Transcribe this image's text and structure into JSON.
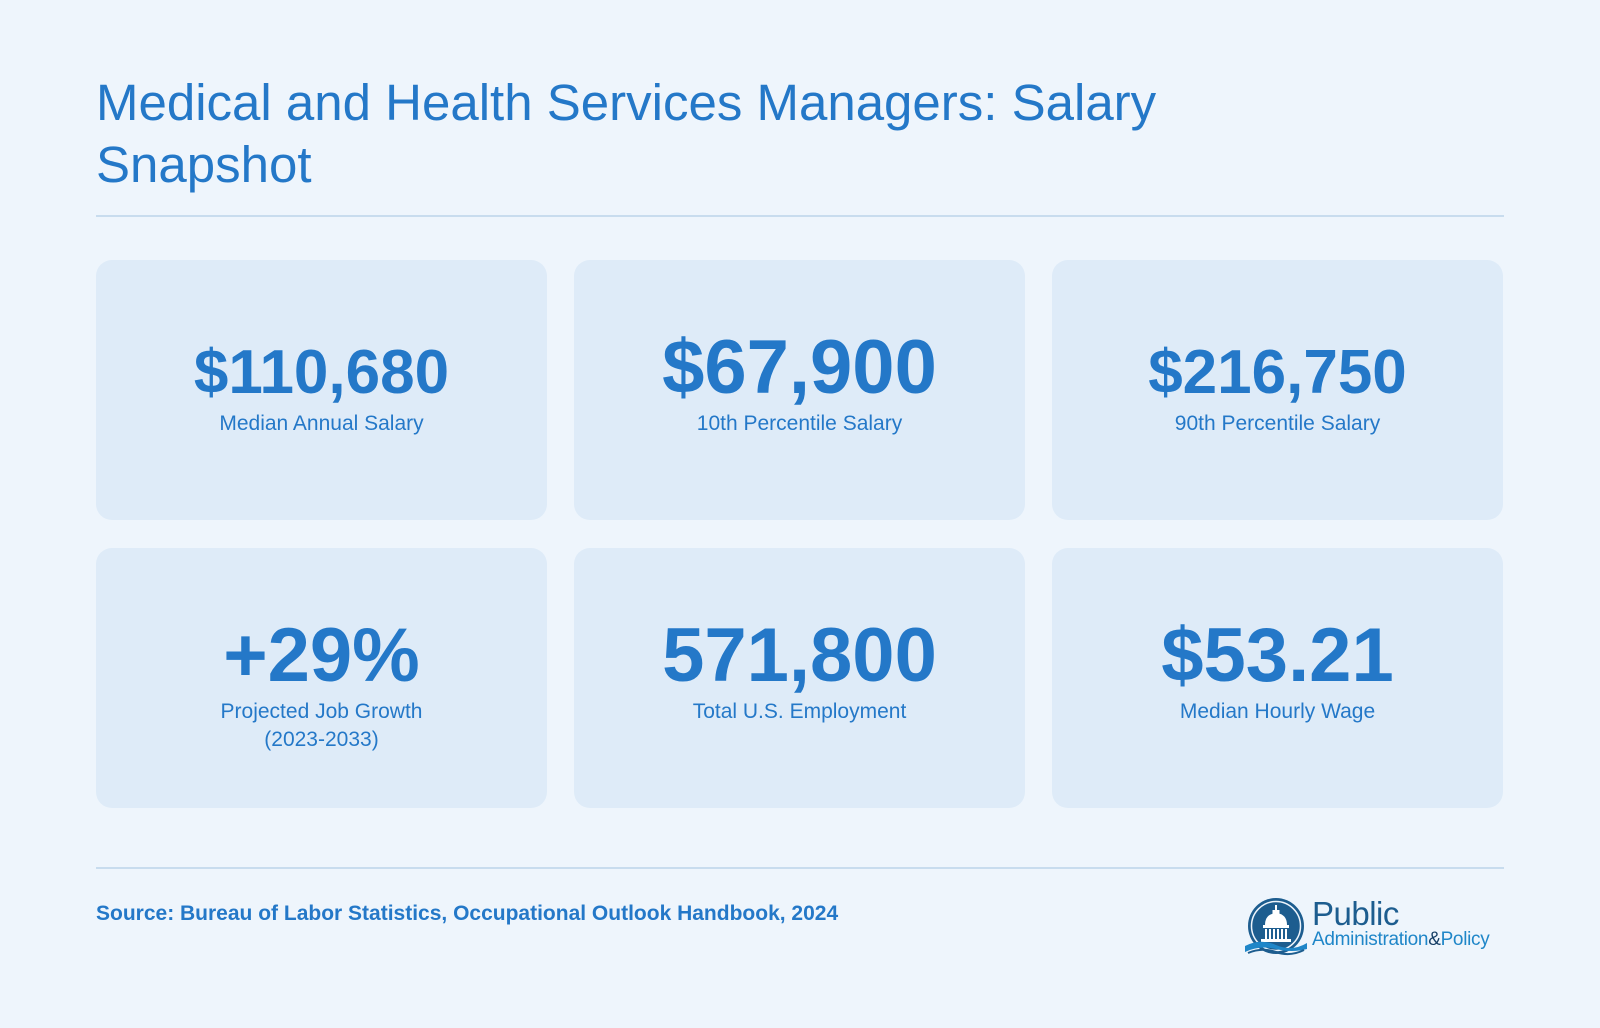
{
  "header": {
    "title": "Medical and Health Services Managers: Salary Snapshot"
  },
  "stats": [
    {
      "value": "$110,680",
      "label_lines": [
        "Median Annual Salary"
      ]
    },
    {
      "value": "$67,900",
      "label_lines": [
        "10th Percentile Salary"
      ]
    },
    {
      "value": "$216,750",
      "label_lines": [
        "90th Percentile Salary"
      ]
    },
    {
      "value": "+29%",
      "label_lines": [
        "Projected Job Growth",
        "(2023-2033)"
      ]
    },
    {
      "value": "571,800",
      "label_lines": [
        "Total U.S. Employment"
      ]
    },
    {
      "value": "$53.21",
      "label_lines": [
        "Median Hourly Wage"
      ]
    }
  ],
  "footer": {
    "source": "Source: Bureau of Labor Statistics, Occupational Outlook Handbook, 2024",
    "logo": {
      "word_public": "Public",
      "word_admin": "Administration",
      "word_amp": "&",
      "word_policy": "Policy",
      "icon": "capitol-dome-icon"
    }
  },
  "colors": {
    "background": "#eef5fc",
    "card": "#deebf8",
    "accent": "#2478c8",
    "divider": "#c8dcee",
    "logo_dark": "#1d5d8f",
    "logo_light": "#1f86c8"
  }
}
